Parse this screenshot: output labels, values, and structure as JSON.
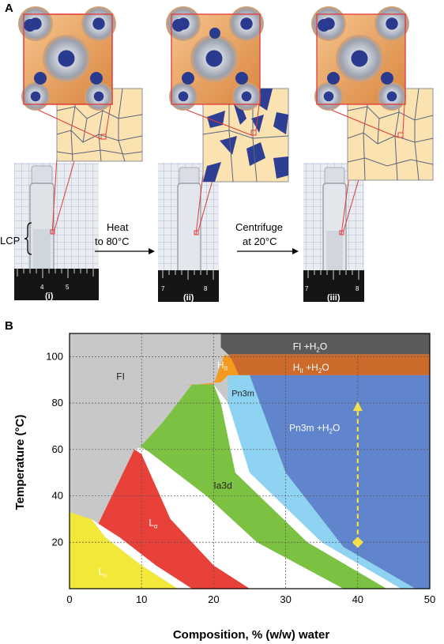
{
  "panel_a": {
    "letter": "A",
    "tube_labels": [
      "(i)",
      "(ii)",
      "(iii)"
    ],
    "lcp_label": "LCP",
    "step1": {
      "line1": "Heat",
      "line2": "to 80°C"
    },
    "step2": {
      "line1": "Centrifuge",
      "line2": "at 20°C"
    },
    "ruler_ticks": {
      "i": [
        "4",
        "5"
      ],
      "ii": [
        "7",
        "8"
      ],
      "iii": [
        "7",
        "8"
      ]
    }
  },
  "panel_b": {
    "letter": "B",
    "regions": {
      "fi": "FI",
      "fi_h2o": "FI +H",
      "hii_h2o": "H",
      "hii": "H",
      "pn3m": "Pn3m",
      "pn3m_h2o": "Pn3m +H",
      "ia3d": "Ia3d",
      "la": "L",
      "lc": "L"
    },
    "region_subscripts": {
      "hii": "II",
      "hii_h2o": "II",
      "la": "α",
      "lc": "c",
      "h2o_sub": "2",
      "h2o_o": "O"
    },
    "colors": {
      "fi": "#c8c8c8",
      "fi_h2o": "#5a5a5a",
      "hii": "#f39a1f",
      "hii_h2o": "#cc6a2c",
      "pn3m": "#8fd3f2",
      "pn3m_h2o": "#6185cc",
      "ia3d": "#7cc242",
      "la": "#e8413a",
      "lc": "#f1e83a",
      "arrow": "#f6e04a"
    }
  },
  "chart_data": {
    "type": "phase-diagram",
    "xlabel": "Composition, % (w/w) water",
    "ylabel": "Temperature (°C)",
    "xlim": [
      0,
      50
    ],
    "ylim": [
      0,
      110
    ],
    "x_ticks": [
      "0",
      "10",
      "20",
      "30",
      "40",
      "50"
    ],
    "y_ticks": [
      "20",
      "40",
      "60",
      "80",
      "100"
    ],
    "grid": true,
    "arrow": {
      "x": 40,
      "y_start": 20,
      "y_end": 80
    }
  }
}
